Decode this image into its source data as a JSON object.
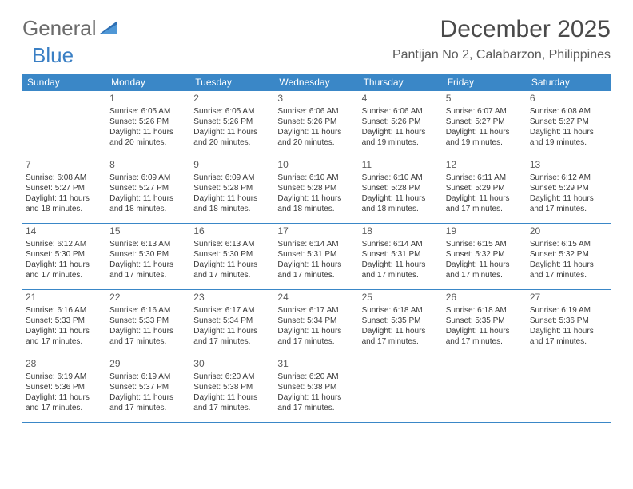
{
  "logo": {
    "text1": "General",
    "text2": "Blue"
  },
  "title": "December 2025",
  "location": "Pantijan No 2, Calabarzon, Philippines",
  "colors": {
    "header_bg": "#3a87c7",
    "header_text": "#ffffff",
    "border": "#3a87c7",
    "body_text": "#3a3a3a",
    "daynum_text": "#5a5a5a",
    "logo_gray": "#6c6c6c",
    "logo_blue": "#3a7fc4"
  },
  "daysOfWeek": [
    "Sunday",
    "Monday",
    "Tuesday",
    "Wednesday",
    "Thursday",
    "Friday",
    "Saturday"
  ],
  "weeks": [
    [
      null,
      {
        "n": "1",
        "sunrise": "6:05 AM",
        "sunset": "5:26 PM",
        "dl1": "Daylight: 11 hours",
        "dl2": "and 20 minutes."
      },
      {
        "n": "2",
        "sunrise": "6:05 AM",
        "sunset": "5:26 PM",
        "dl1": "Daylight: 11 hours",
        "dl2": "and 20 minutes."
      },
      {
        "n": "3",
        "sunrise": "6:06 AM",
        "sunset": "5:26 PM",
        "dl1": "Daylight: 11 hours",
        "dl2": "and 20 minutes."
      },
      {
        "n": "4",
        "sunrise": "6:06 AM",
        "sunset": "5:26 PM",
        "dl1": "Daylight: 11 hours",
        "dl2": "and 19 minutes."
      },
      {
        "n": "5",
        "sunrise": "6:07 AM",
        "sunset": "5:27 PM",
        "dl1": "Daylight: 11 hours",
        "dl2": "and 19 minutes."
      },
      {
        "n": "6",
        "sunrise": "6:08 AM",
        "sunset": "5:27 PM",
        "dl1": "Daylight: 11 hours",
        "dl2": "and 19 minutes."
      }
    ],
    [
      {
        "n": "7",
        "sunrise": "6:08 AM",
        "sunset": "5:27 PM",
        "dl1": "Daylight: 11 hours",
        "dl2": "and 18 minutes."
      },
      {
        "n": "8",
        "sunrise": "6:09 AM",
        "sunset": "5:27 PM",
        "dl1": "Daylight: 11 hours",
        "dl2": "and 18 minutes."
      },
      {
        "n": "9",
        "sunrise": "6:09 AM",
        "sunset": "5:28 PM",
        "dl1": "Daylight: 11 hours",
        "dl2": "and 18 minutes."
      },
      {
        "n": "10",
        "sunrise": "6:10 AM",
        "sunset": "5:28 PM",
        "dl1": "Daylight: 11 hours",
        "dl2": "and 18 minutes."
      },
      {
        "n": "11",
        "sunrise": "6:10 AM",
        "sunset": "5:28 PM",
        "dl1": "Daylight: 11 hours",
        "dl2": "and 18 minutes."
      },
      {
        "n": "12",
        "sunrise": "6:11 AM",
        "sunset": "5:29 PM",
        "dl1": "Daylight: 11 hours",
        "dl2": "and 17 minutes."
      },
      {
        "n": "13",
        "sunrise": "6:12 AM",
        "sunset": "5:29 PM",
        "dl1": "Daylight: 11 hours",
        "dl2": "and 17 minutes."
      }
    ],
    [
      {
        "n": "14",
        "sunrise": "6:12 AM",
        "sunset": "5:30 PM",
        "dl1": "Daylight: 11 hours",
        "dl2": "and 17 minutes."
      },
      {
        "n": "15",
        "sunrise": "6:13 AM",
        "sunset": "5:30 PM",
        "dl1": "Daylight: 11 hours",
        "dl2": "and 17 minutes."
      },
      {
        "n": "16",
        "sunrise": "6:13 AM",
        "sunset": "5:30 PM",
        "dl1": "Daylight: 11 hours",
        "dl2": "and 17 minutes."
      },
      {
        "n": "17",
        "sunrise": "6:14 AM",
        "sunset": "5:31 PM",
        "dl1": "Daylight: 11 hours",
        "dl2": "and 17 minutes."
      },
      {
        "n": "18",
        "sunrise": "6:14 AM",
        "sunset": "5:31 PM",
        "dl1": "Daylight: 11 hours",
        "dl2": "and 17 minutes."
      },
      {
        "n": "19",
        "sunrise": "6:15 AM",
        "sunset": "5:32 PM",
        "dl1": "Daylight: 11 hours",
        "dl2": "and 17 minutes."
      },
      {
        "n": "20",
        "sunrise": "6:15 AM",
        "sunset": "5:32 PM",
        "dl1": "Daylight: 11 hours",
        "dl2": "and 17 minutes."
      }
    ],
    [
      {
        "n": "21",
        "sunrise": "6:16 AM",
        "sunset": "5:33 PM",
        "dl1": "Daylight: 11 hours",
        "dl2": "and 17 minutes."
      },
      {
        "n": "22",
        "sunrise": "6:16 AM",
        "sunset": "5:33 PM",
        "dl1": "Daylight: 11 hours",
        "dl2": "and 17 minutes."
      },
      {
        "n": "23",
        "sunrise": "6:17 AM",
        "sunset": "5:34 PM",
        "dl1": "Daylight: 11 hours",
        "dl2": "and 17 minutes."
      },
      {
        "n": "24",
        "sunrise": "6:17 AM",
        "sunset": "5:34 PM",
        "dl1": "Daylight: 11 hours",
        "dl2": "and 17 minutes."
      },
      {
        "n": "25",
        "sunrise": "6:18 AM",
        "sunset": "5:35 PM",
        "dl1": "Daylight: 11 hours",
        "dl2": "and 17 minutes."
      },
      {
        "n": "26",
        "sunrise": "6:18 AM",
        "sunset": "5:35 PM",
        "dl1": "Daylight: 11 hours",
        "dl2": "and 17 minutes."
      },
      {
        "n": "27",
        "sunrise": "6:19 AM",
        "sunset": "5:36 PM",
        "dl1": "Daylight: 11 hours",
        "dl2": "and 17 minutes."
      }
    ],
    [
      {
        "n": "28",
        "sunrise": "6:19 AM",
        "sunset": "5:36 PM",
        "dl1": "Daylight: 11 hours",
        "dl2": "and 17 minutes."
      },
      {
        "n": "29",
        "sunrise": "6:19 AM",
        "sunset": "5:37 PM",
        "dl1": "Daylight: 11 hours",
        "dl2": "and 17 minutes."
      },
      {
        "n": "30",
        "sunrise": "6:20 AM",
        "sunset": "5:38 PM",
        "dl1": "Daylight: 11 hours",
        "dl2": "and 17 minutes."
      },
      {
        "n": "31",
        "sunrise": "6:20 AM",
        "sunset": "5:38 PM",
        "dl1": "Daylight: 11 hours",
        "dl2": "and 17 minutes."
      },
      null,
      null,
      null
    ]
  ]
}
